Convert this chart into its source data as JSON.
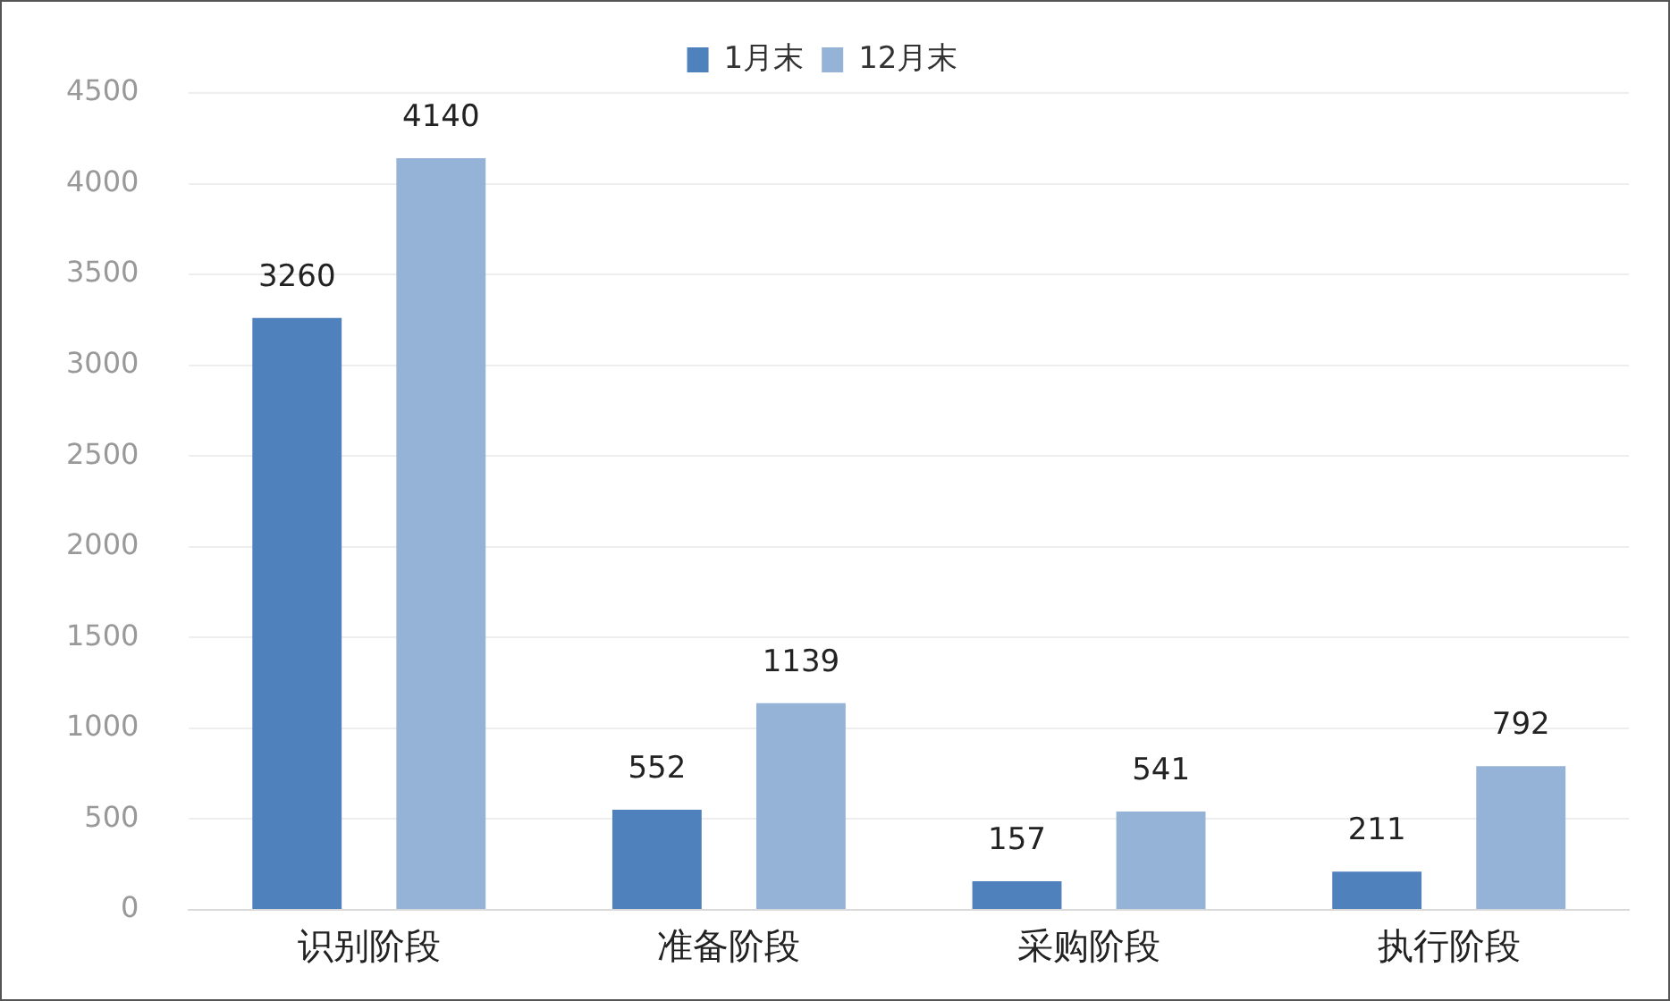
{
  "chart_data": {
    "type": "bar",
    "categories": [
      "识别阶段",
      "准备阶段",
      "采购阶段",
      "执行阶段"
    ],
    "series": [
      {
        "name": "1月末",
        "color": "#4f81bd",
        "values": [
          3260,
          552,
          157,
          211
        ]
      },
      {
        "name": "12月末",
        "color": "#95b3d7",
        "values": [
          4140,
          1139,
          541,
          792
        ]
      }
    ],
    "ylim": [
      0,
      4500
    ],
    "yticks": [
      0,
      500,
      1000,
      1500,
      2000,
      2500,
      3000,
      3500,
      4000,
      4500
    ],
    "grid": "y",
    "legend": "top",
    "data_labels": true
  }
}
